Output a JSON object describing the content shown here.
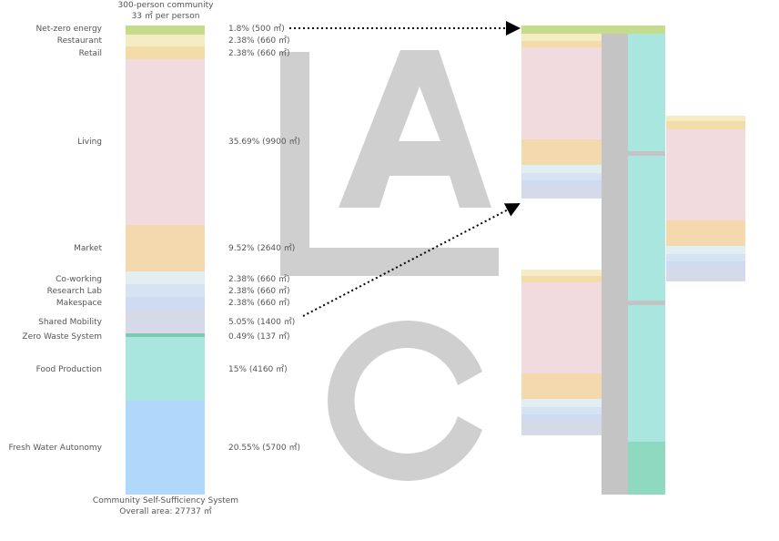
{
  "header": {
    "title": "300-person community",
    "subtitle": "33 ㎡ per person"
  },
  "items": [
    {
      "label": "Net-zero energy",
      "share": "1.8% (500 ㎡)"
    },
    {
      "label": "Restaurant",
      "share": "2.38% (660 ㎡)"
    },
    {
      "label": "Retail",
      "share": "2.38% (660 ㎡)"
    },
    {
      "label": "Living",
      "share": "35.69% (9900 ㎡)"
    },
    {
      "label": "Market",
      "share": "9.52% (2640 ㎡)"
    },
    {
      "label": "Co-working",
      "share": "2.38% (660 ㎡)"
    },
    {
      "label": "Research Lab",
      "share": "2.38% (660 ㎡)"
    },
    {
      "label": "Makespace",
      "share": "2.38% (660 ㎡)"
    },
    {
      "label": "Shared Mobility",
      "share": "5.05% (1400 ㎡)"
    },
    {
      "label": "Zero Waste System",
      "share": "0.49% (137 ㎡)"
    },
    {
      "label": "Food Production",
      "share": "15% (4160 ㎡)"
    },
    {
      "label": "Fresh Water Autonomy",
      "share": "20.55% (5700 ㎡)"
    }
  ],
  "footer": {
    "title": "Community Self-Sufficiency System",
    "subtitle": "Overall area: 27737 ㎡"
  }
}
